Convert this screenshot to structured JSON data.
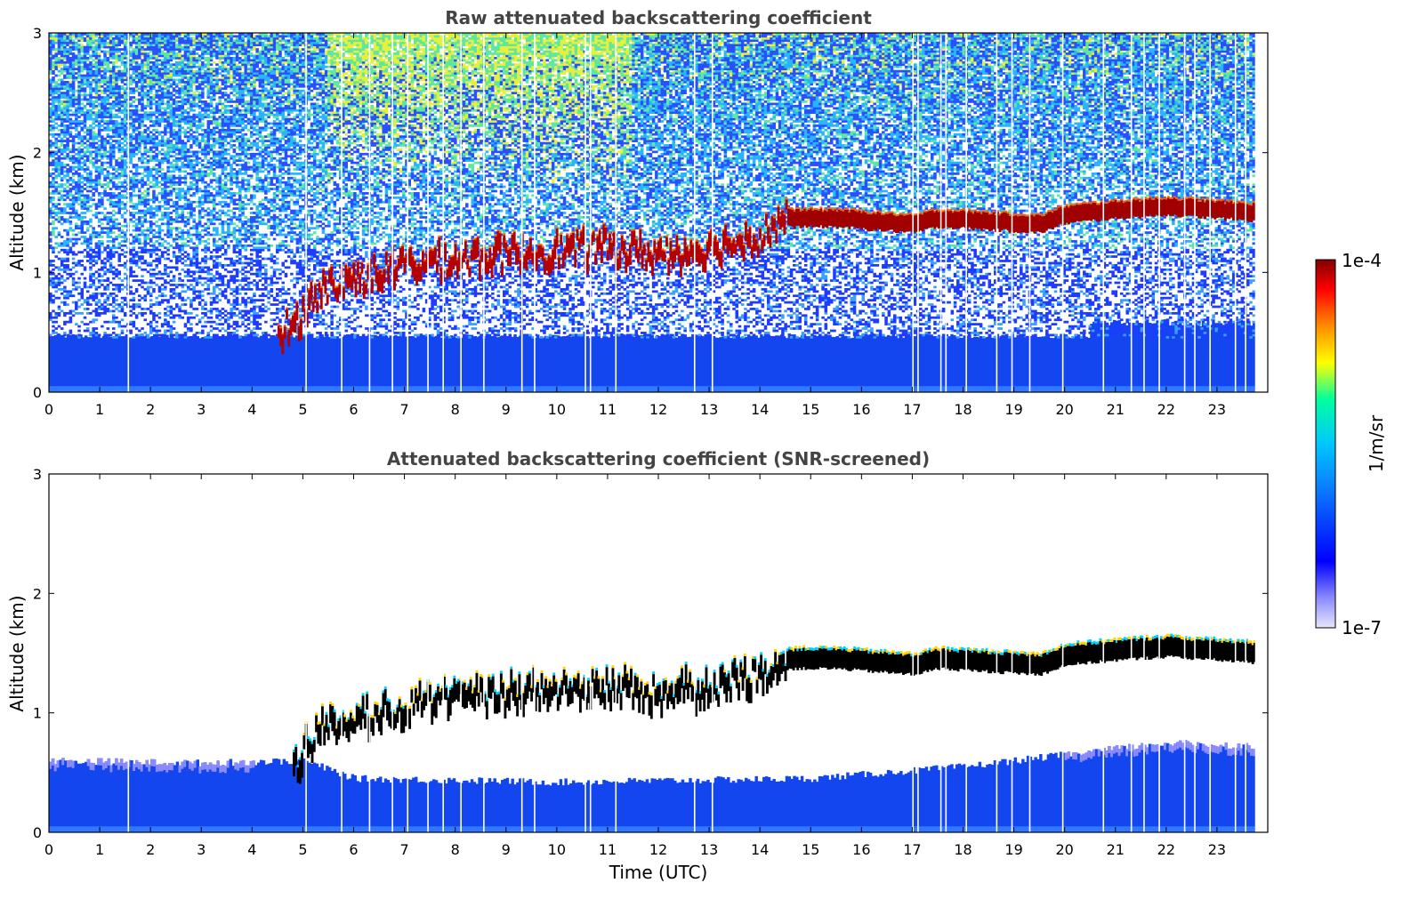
{
  "chart_data": [
    {
      "type": "heatmap",
      "title": "Raw attenuated backscattering coefficient",
      "xlabel": "",
      "ylabel": "Altitude (km)",
      "xlim": [
        0,
        24
      ],
      "ylim": [
        0,
        3
      ],
      "x_ticks": [
        "0",
        "1",
        "2",
        "3",
        "4",
        "5",
        "6",
        "7",
        "8",
        "9",
        "10",
        "11",
        "12",
        "13",
        "14",
        "15",
        "16",
        "17",
        "18",
        "19",
        "20",
        "21",
        "22",
        "23"
      ],
      "y_ticks": [
        "0",
        "1",
        "2",
        "3"
      ],
      "features": {
        "boundary_layer_top_km": [
          [
            0,
            0.45
          ],
          [
            4,
            0.45
          ],
          [
            4.8,
            0.55
          ],
          [
            5.3,
            0.85
          ],
          [
            6,
            0.95
          ],
          [
            7,
            1.05
          ],
          [
            8,
            1.1
          ],
          [
            9,
            1.15
          ],
          [
            10,
            1.18
          ],
          [
            11,
            1.2
          ],
          [
            12,
            1.15
          ],
          [
            13,
            1.2
          ],
          [
            14,
            1.3
          ],
          [
            14.5,
            1.45
          ],
          [
            15.5,
            1.45
          ],
          [
            17,
            1.4
          ],
          [
            17.5,
            1.45
          ],
          [
            19.5,
            1.4
          ],
          [
            20,
            1.48
          ],
          [
            21,
            1.52
          ],
          [
            22,
            1.55
          ],
          [
            23.7,
            1.5
          ]
        ],
        "noise_top_intensity": "high between 6 and 11 UTC"
      }
    },
    {
      "type": "heatmap",
      "title": "Attenuated backscattering coefficient (SNR-screened)",
      "xlabel": "Time (UTC)",
      "ylabel": "Altitude (km)",
      "xlim": [
        0,
        24
      ],
      "ylim": [
        0,
        3
      ],
      "x_ticks": [
        "0",
        "1",
        "2",
        "3",
        "4",
        "5",
        "6",
        "7",
        "8",
        "9",
        "10",
        "11",
        "12",
        "13",
        "14",
        "15",
        "16",
        "17",
        "18",
        "19",
        "20",
        "21",
        "22",
        "23"
      ],
      "y_ticks": [
        "0",
        "1",
        "2",
        "3"
      ],
      "features": {
        "surface_layer_top_km": [
          [
            0,
            0.6
          ],
          [
            3,
            0.58
          ],
          [
            5,
            0.6
          ],
          [
            6,
            0.45
          ],
          [
            10,
            0.42
          ],
          [
            15,
            0.45
          ],
          [
            18,
            0.55
          ],
          [
            20,
            0.65
          ],
          [
            22,
            0.75
          ],
          [
            23.7,
            0.72
          ]
        ]
      }
    }
  ],
  "colorbar": {
    "label": "1/m/sr",
    "max_label": "1e-4",
    "min_label": "1e-7",
    "colors": [
      "#e6e6fa",
      "#0000ff",
      "#00bfff",
      "#00ffaa",
      "#ffff00",
      "#ff7f00",
      "#ff0000",
      "#800000"
    ]
  }
}
